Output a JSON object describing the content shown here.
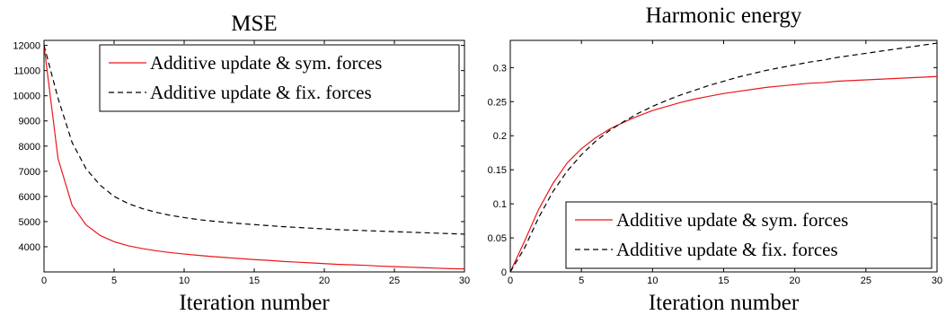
{
  "chart_data": [
    {
      "type": "line",
      "title": "MSE",
      "xlabel": "Iteration number",
      "ylabel": "",
      "xlim": [
        0,
        30
      ],
      "ylim": [
        3000,
        12200
      ],
      "xticks": [
        0,
        5,
        10,
        15,
        20,
        25,
        30
      ],
      "yticks": [
        4000,
        5000,
        6000,
        7000,
        8000,
        9000,
        10000,
        11000,
        12000
      ],
      "grid": false,
      "legend_position": "top-right",
      "x": [
        0,
        1,
        2,
        3,
        4,
        5,
        6,
        7,
        8,
        9,
        10,
        11,
        12,
        13,
        14,
        15,
        16,
        17,
        18,
        19,
        20,
        21,
        22,
        23,
        24,
        25,
        26,
        27,
        28,
        29,
        30
      ],
      "series": [
        {
          "name": "Additive update & sym. forces",
          "color": "#e8171c",
          "dash": "solid",
          "values": [
            12000,
            7500,
            5650,
            4870,
            4450,
            4200,
            4040,
            3930,
            3840,
            3770,
            3710,
            3660,
            3610,
            3570,
            3530,
            3490,
            3460,
            3420,
            3390,
            3360,
            3330,
            3300,
            3280,
            3260,
            3230,
            3210,
            3190,
            3170,
            3150,
            3130,
            3120
          ]
        },
        {
          "name": "Additive update & fix. forces",
          "color": "#000000",
          "dash": "dashed",
          "values": [
            12000,
            9900,
            8150,
            7100,
            6450,
            6000,
            5720,
            5520,
            5370,
            5250,
            5160,
            5080,
            5020,
            4970,
            4920,
            4880,
            4840,
            4800,
            4770,
            4740,
            4710,
            4680,
            4660,
            4640,
            4620,
            4600,
            4580,
            4560,
            4540,
            4520,
            4500
          ]
        }
      ]
    },
    {
      "type": "line",
      "title": "Harmonic energy",
      "xlabel": "Iteration number",
      "ylabel": "",
      "xlim": [
        0,
        30
      ],
      "ylim": [
        0,
        0.34
      ],
      "xticks": [
        0,
        5,
        10,
        15,
        20,
        25,
        30
      ],
      "yticks": [
        0,
        0.05,
        0.1,
        0.15,
        0.2,
        0.25,
        0.3
      ],
      "grid": false,
      "legend_position": "bottom-right",
      "x": [
        0,
        1,
        2,
        3,
        4,
        5,
        6,
        7,
        8,
        9,
        10,
        11,
        12,
        13,
        14,
        15,
        16,
        17,
        18,
        19,
        20,
        21,
        22,
        23,
        24,
        25,
        26,
        27,
        28,
        29,
        30
      ],
      "series": [
        {
          "name": "Additive update & sym. forces",
          "color": "#e8171c",
          "dash": "solid",
          "values": [
            0.0,
            0.045,
            0.092,
            0.13,
            0.16,
            0.181,
            0.197,
            0.21,
            0.22,
            0.229,
            0.237,
            0.243,
            0.249,
            0.254,
            0.258,
            0.262,
            0.265,
            0.268,
            0.271,
            0.273,
            0.275,
            0.277,
            0.278,
            0.28,
            0.281,
            0.282,
            0.283,
            0.284,
            0.285,
            0.286,
            0.287
          ]
        },
        {
          "name": "Additive update & fix. forces",
          "color": "#000000",
          "dash": "dashed",
          "values": [
            0.0,
            0.035,
            0.08,
            0.118,
            0.148,
            0.172,
            0.192,
            0.208,
            0.221,
            0.233,
            0.243,
            0.252,
            0.26,
            0.267,
            0.274,
            0.28,
            0.286,
            0.291,
            0.296,
            0.3,
            0.304,
            0.308,
            0.311,
            0.315,
            0.318,
            0.321,
            0.324,
            0.327,
            0.33,
            0.333,
            0.336
          ]
        }
      ]
    }
  ]
}
